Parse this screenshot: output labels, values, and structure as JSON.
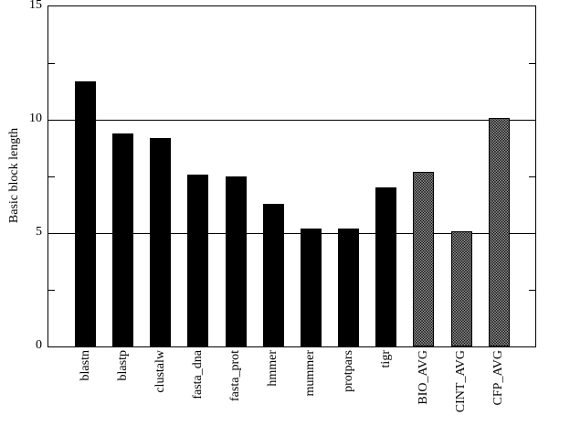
{
  "chart_data": {
    "type": "bar",
    "title": "",
    "ylabel": "Basic block length",
    "xlabel": "",
    "ylim": [
      0,
      15
    ],
    "yticks": [
      0,
      5,
      10,
      15
    ],
    "minor_yticks": [
      2.5,
      7.5,
      12.5
    ],
    "gridlines_at": [
      5,
      10
    ],
    "grid": "horizontal-major",
    "legend": "none",
    "categories": [
      "blastn",
      "blastp",
      "clustalw",
      "fasta_dna",
      "fasta_prot",
      "hmmer",
      "mummer",
      "protpars",
      "tigr",
      "BIO_AVG",
      "CINT_AVG",
      "CFP_AVG"
    ],
    "values": [
      11.7,
      9.4,
      9.2,
      7.6,
      7.5,
      6.3,
      5.2,
      5.2,
      7.0,
      7.7,
      5.1,
      10.1
    ],
    "bar_fills": [
      "solid",
      "solid",
      "solid",
      "solid",
      "solid",
      "solid",
      "solid",
      "solid",
      "solid",
      "stipple",
      "stipple",
      "stipple"
    ],
    "colors": {
      "bar": "#000000",
      "background": "#ffffff",
      "axis": "#000000"
    }
  }
}
